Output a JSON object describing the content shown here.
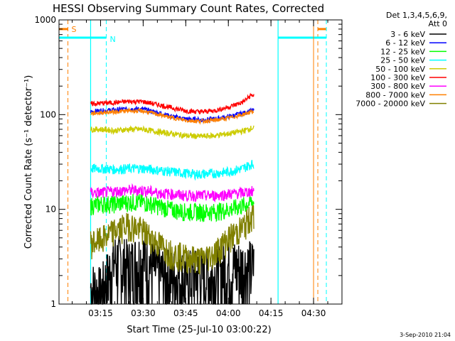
{
  "chart_data": {
    "type": "line",
    "title": "HESSI Observing Summary Count Rates, Corrected",
    "xlabel": "Start Time (25-Jul-10 03:00:22)",
    "ylabel": "Corrected Count Rate (s⁻¹ detector⁻¹)",
    "xlim": [
      "03:00:22",
      "04:40:00"
    ],
    "ylim": [
      1,
      1000
    ],
    "yscale": "log",
    "x_ticks": [
      "03:15",
      "03:30",
      "03:45",
      "04:00",
      "04:15",
      "04:30"
    ],
    "y_ticks": [
      "1",
      "10",
      "100",
      "1000"
    ],
    "legend_header": [
      "Det 1,3,4,5,6,9,",
      "Att 0"
    ],
    "legend_position": "right",
    "footer": "3-Sep-2010 21:04",
    "data_interval": [
      "03:11:30",
      "04:09:00"
    ],
    "x": [
      "03:12",
      "03:15",
      "03:20",
      "03:25",
      "03:30",
      "03:35",
      "03:40",
      "03:45",
      "03:50",
      "03:55",
      "04:00",
      "04:05",
      "04:08"
    ],
    "series": [
      {
        "name": "3 - 6 keV",
        "color": "#000000",
        "values": [
          1.5,
          1.3,
          3.0,
          2.5,
          3.2,
          2.2,
          2.0,
          2.0,
          2.0,
          2.0,
          2.5,
          2.5,
          2.5
        ]
      },
      {
        "name": "6 - 12 keV",
        "color": "#0000ff",
        "values": [
          108,
          110,
          112,
          115,
          114,
          105,
          96,
          90,
          88,
          90,
          95,
          103,
          110
        ]
      },
      {
        "name": "12 - 25 keV",
        "color": "#00ff00",
        "values": [
          11,
          11.5,
          11.5,
          12,
          12,
          11,
          10,
          9.5,
          9.5,
          9.5,
          10,
          11,
          12
        ]
      },
      {
        "name": "25 - 50 keV",
        "color": "#00ffff",
        "values": [
          27,
          27,
          26.5,
          27,
          27,
          26,
          25,
          24,
          23.5,
          24,
          25,
          27,
          30
        ]
      },
      {
        "name": "50 - 100 keV",
        "color": "#cccc00",
        "values": [
          70,
          70,
          68,
          70,
          70,
          66,
          63,
          60,
          59,
          60,
          63,
          67,
          72
        ]
      },
      {
        "name": "100 - 300 keV",
        "color": "#ff0000",
        "values": [
          130,
          132,
          134,
          138,
          137,
          128,
          118,
          110,
          107,
          110,
          120,
          135,
          160
        ]
      },
      {
        "name": "300 - 800 keV",
        "color": "#ff00ff",
        "values": [
          15,
          15,
          15.5,
          16,
          16,
          15,
          14.5,
          14,
          14,
          14,
          14.5,
          15,
          15.5
        ]
      },
      {
        "name": "800 - 7000 keV",
        "color": "#ff8000",
        "values": [
          103,
          105,
          107,
          110,
          109,
          101,
          93,
          87,
          85,
          87,
          92,
          100,
          107
        ]
      },
      {
        "name": "7000 - 20000 keV",
        "color": "#808000",
        "values": [
          4.5,
          4.8,
          6.0,
          7.0,
          6.0,
          4.5,
          3.5,
          3.2,
          3.0,
          3.5,
          5.0,
          6.5,
          8.5
        ]
      }
    ],
    "flags": [
      {
        "label": "S",
        "color": "#ff8000",
        "level": 800,
        "spans": [
          [
            "03:00:22",
            "03:03:30"
          ],
          [
            "04:31:30",
            "04:34:30"
          ]
        ],
        "lines": [
          "03:03:30",
          "04:31:30"
        ]
      },
      {
        "label": "N",
        "color": "#00ffff",
        "level": 650,
        "spans": [
          [
            "03:00:22",
            "03:17:00"
          ],
          [
            "04:17:30",
            "04:34:30"
          ]
        ],
        "lines": [
          "03:17:00",
          "04:34:30"
        ]
      }
    ],
    "data_boundaries": {
      "color": "#00ffff",
      "at": [
        "03:11:30",
        "04:17:30"
      ]
    },
    "orange_boundary": {
      "color": "#ff8000",
      "at": "04:30:00"
    }
  }
}
